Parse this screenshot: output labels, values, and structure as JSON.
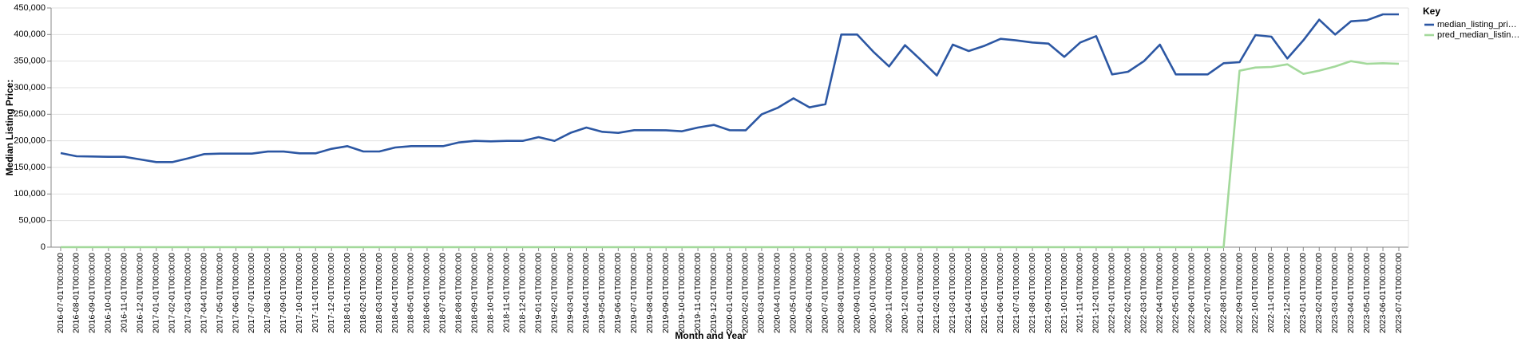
{
  "chart_data": {
    "type": "line",
    "x_label": "Month and Year",
    "y_label": "Median Listing Price:",
    "legend_title": "Key",
    "legend": "top-right-outside",
    "grid": true,
    "categories": [
      "2016-07-01T00:00:00",
      "2016-08-01T00:00:00",
      "2016-09-01T00:00:00",
      "2016-10-01T00:00:00",
      "2016-11-01T00:00:00",
      "2016-12-01T00:00:00",
      "2017-01-01T00:00:00",
      "2017-02-01T00:00:00",
      "2017-03-01T00:00:00",
      "2017-04-01T00:00:00",
      "2017-05-01T00:00:00",
      "2017-06-01T00:00:00",
      "2017-07-01T00:00:00",
      "2017-08-01T00:00:00",
      "2017-09-01T00:00:00",
      "2017-10-01T00:00:00",
      "2017-11-01T00:00:00",
      "2017-12-01T00:00:00",
      "2018-01-01T00:00:00",
      "2018-02-01T00:00:00",
      "2018-03-01T00:00:00",
      "2018-04-01T00:00:00",
      "2018-05-01T00:00:00",
      "2018-06-01T00:00:00",
      "2018-07-01T00:00:00",
      "2018-08-01T00:00:00",
      "2018-09-01T00:00:00",
      "2018-10-01T00:00:00",
      "2018-11-01T00:00:00",
      "2018-12-01T00:00:00",
      "2019-01-01T00:00:00",
      "2019-02-01T00:00:00",
      "2019-03-01T00:00:00",
      "2019-04-01T00:00:00",
      "2019-05-01T00:00:00",
      "2019-06-01T00:00:00",
      "2019-07-01T00:00:00",
      "2019-08-01T00:00:00",
      "2019-09-01T00:00:00",
      "2019-10-01T00:00:00",
      "2019-11-01T00:00:00",
      "2019-12-01T00:00:00",
      "2020-01-01T00:00:00",
      "2020-02-01T00:00:00",
      "2020-03-01T00:00:00",
      "2020-04-01T00:00:00",
      "2020-05-01T00:00:00",
      "2020-06-01T00:00:00",
      "2020-07-01T00:00:00",
      "2020-08-01T00:00:00",
      "2020-09-01T00:00:00",
      "2020-10-01T00:00:00",
      "2020-11-01T00:00:00",
      "2020-12-01T00:00:00",
      "2021-01-01T00:00:00",
      "2021-02-01T00:00:00",
      "2021-03-01T00:00:00",
      "2021-04-01T00:00:00",
      "2021-05-01T00:00:00",
      "2021-06-01T00:00:00",
      "2021-07-01T00:00:00",
      "2021-08-01T00:00:00",
      "2021-09-01T00:00:00",
      "2021-10-01T00:00:00",
      "2021-11-01T00:00:00",
      "2021-12-01T00:00:00",
      "2022-01-01T00:00:00",
      "2022-02-01T00:00:00",
      "2022-03-01T00:00:00",
      "2022-04-01T00:00:00",
      "2022-05-01T00:00:00",
      "2022-06-01T00:00:00",
      "2022-07-01T00:00:00",
      "2022-08-01T00:00:00",
      "2022-09-01T00:00:00",
      "2022-10-01T00:00:00",
      "2022-11-01T00:00:00",
      "2022-12-01T00:00:00",
      "2023-01-01T00:00:00",
      "2023-02-01T00:00:00",
      "2023-03-01T00:00:00",
      "2023-04-01T00:00:00",
      "2023-05-01T00:00:00",
      "2023-06-01T00:00:00",
      "2023-07-01T00:00:00"
    ],
    "series": [
      {
        "name": "median_listing_pri…",
        "color": "#2c57a3",
        "values": [
          177000,
          171000,
          170500,
          170000,
          170000,
          165000,
          160000,
          160000,
          167000,
          175000,
          176000,
          176000,
          176000,
          179900,
          179900,
          176500,
          176500,
          185000,
          190000,
          180000,
          180000,
          187500,
          190000,
          190000,
          190000,
          197000,
          200000,
          199000,
          199900,
          199900,
          207000,
          199900,
          215000,
          225000,
          217000,
          215000,
          220000,
          220000,
          219900,
          218000,
          225000,
          230000,
          220000,
          219900,
          249900,
          262000,
          280000,
          263000,
          269000,
          400000,
          400000,
          368000,
          340000,
          380000,
          352000,
          323000,
          381000,
          369000,
          379000,
          392000,
          389000,
          385000,
          383000,
          358000,
          385000,
          397000,
          325000,
          330000,
          350000,
          381000,
          325000,
          325000,
          325000,
          346000,
          348000,
          399000,
          396000,
          355000,
          389000,
          428000,
          400000,
          425000,
          427000,
          438000,
          438000
        ]
      },
      {
        "name": "pred_median_listin…",
        "color": "#a3d99b",
        "values": [
          0,
          0,
          0,
          0,
          0,
          0,
          0,
          0,
          0,
          0,
          0,
          0,
          0,
          0,
          0,
          0,
          0,
          0,
          0,
          0,
          0,
          0,
          0,
          0,
          0,
          0,
          0,
          0,
          0,
          0,
          0,
          0,
          0,
          0,
          0,
          0,
          0,
          0,
          0,
          0,
          0,
          0,
          0,
          0,
          0,
          0,
          0,
          0,
          0,
          0,
          0,
          0,
          0,
          0,
          0,
          0,
          0,
          0,
          0,
          0,
          0,
          0,
          0,
          0,
          0,
          0,
          0,
          0,
          0,
          0,
          0,
          0,
          0,
          0,
          332000,
          338000,
          339000,
          344000,
          326000,
          332000,
          340000,
          350000,
          345000,
          346000,
          345000
        ]
      }
    ],
    "ylim": [
      0,
      450000
    ],
    "yticks": [
      0,
      {
        "value": 50000,
        "label": "50,000"
      },
      {
        "value": 100000,
        "label": "100,000"
      },
      {
        "value": 150000,
        "label": "150,000"
      },
      {
        "value": 200000,
        "label": "200,000"
      },
      {
        "value": 250000,
        "label": "250,000"
      },
      {
        "value": 300000,
        "label": "300,000"
      },
      {
        "value": 350000,
        "label": "350,000"
      },
      {
        "value": 400000,
        "label": "400,000"
      },
      {
        "value": 450000,
        "label": "450,000"
      }
    ]
  }
}
